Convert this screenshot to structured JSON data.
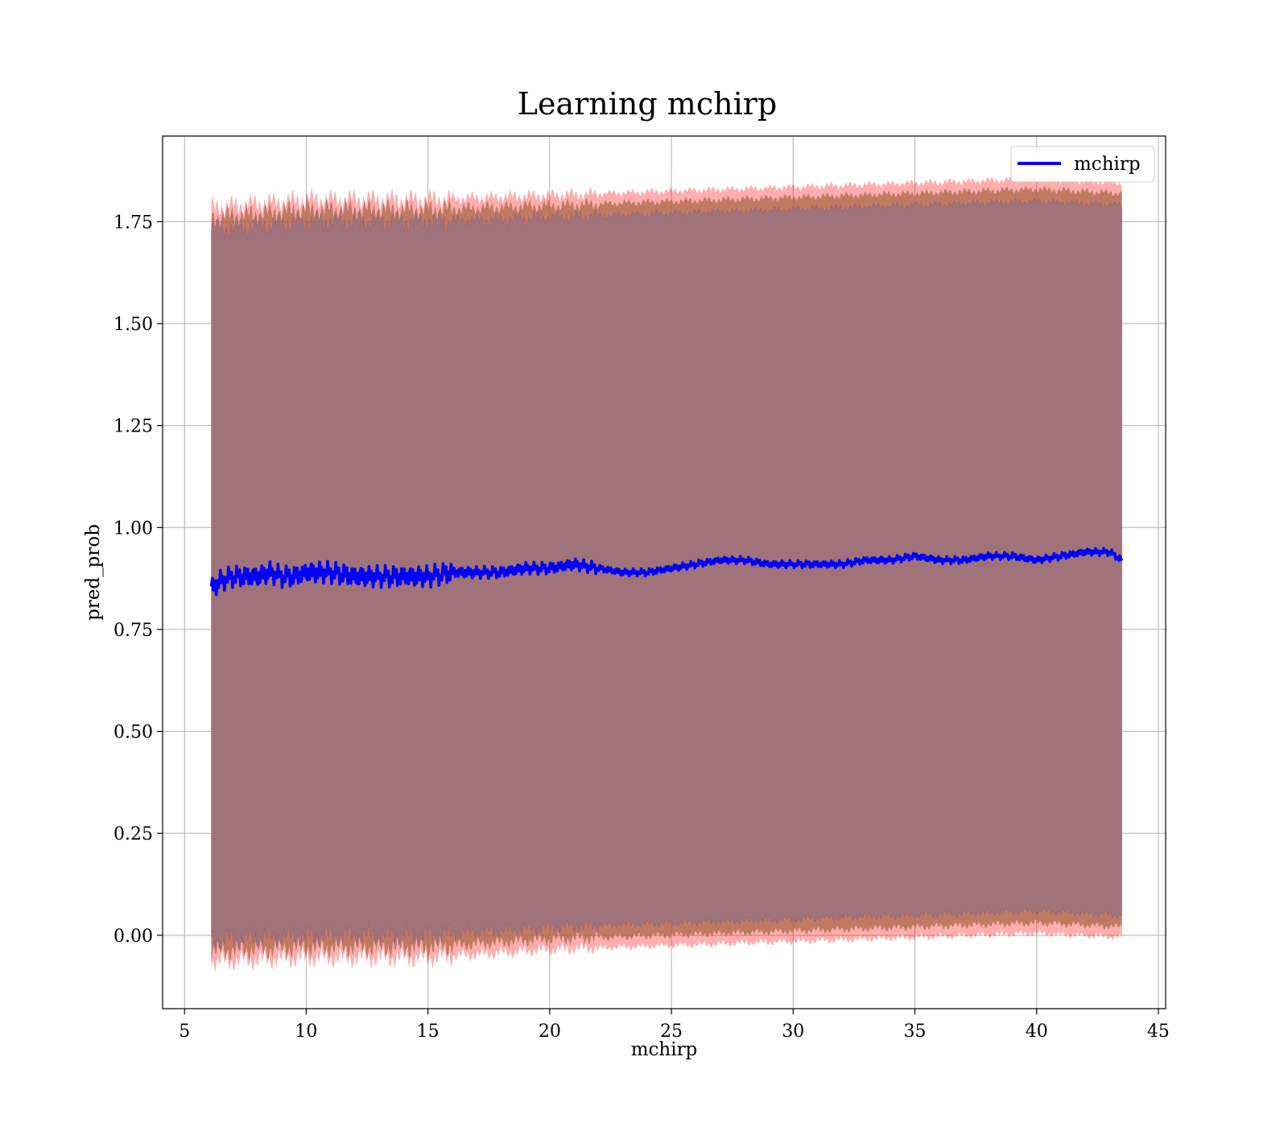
{
  "chart_data": {
    "type": "line",
    "title": "Learning mchirp",
    "xlabel": "mchirp",
    "ylabel": "pred_prob",
    "xlim": [
      4.1,
      45.3
    ],
    "ylim": [
      -0.18,
      1.96
    ],
    "xticks": [
      5,
      10,
      15,
      20,
      25,
      30,
      35,
      40,
      45
    ],
    "yticks": [
      0.0,
      0.25,
      0.5,
      0.75,
      1.0,
      1.25,
      1.5,
      1.75
    ],
    "ytick_labels": [
      "0.00",
      "0.25",
      "0.50",
      "0.75",
      "1.00",
      "1.25",
      "1.50",
      "1.75"
    ],
    "grid": true,
    "legend": {
      "position": "top-right",
      "entries": [
        {
          "label": "mchirp",
          "color": "#0000ff"
        }
      ]
    },
    "series": [
      {
        "name": "mchirp",
        "color": "#0000ff",
        "x": [
          6.1,
          6.5,
          7.0,
          7.5,
          8.0,
          8.5,
          9.0,
          9.5,
          10.0,
          11.0,
          12.0,
          13.0,
          14.0,
          15.0,
          16.0,
          17.0,
          18.0,
          19.0,
          20.0,
          21.0,
          22.0,
          23.0,
          24.0,
          25.0,
          26.0,
          27.0,
          28.0,
          29.0,
          30.0,
          31.0,
          32.0,
          33.0,
          34.0,
          35.0,
          36.0,
          37.0,
          38.0,
          39.0,
          40.0,
          41.0,
          42.0,
          43.0,
          43.5
        ],
        "values": [
          0.85,
          0.87,
          0.88,
          0.88,
          0.88,
          0.89,
          0.88,
          0.88,
          0.89,
          0.89,
          0.88,
          0.88,
          0.88,
          0.88,
          0.89,
          0.89,
          0.89,
          0.9,
          0.9,
          0.91,
          0.9,
          0.89,
          0.89,
          0.9,
          0.91,
          0.92,
          0.92,
          0.91,
          0.91,
          0.91,
          0.91,
          0.92,
          0.92,
          0.93,
          0.92,
          0.92,
          0.93,
          0.93,
          0.92,
          0.93,
          0.94,
          0.94,
          0.92
        ]
      }
    ],
    "band_lower": {
      "color": "#ff0000",
      "x": [
        6.1,
        10.0,
        15.0,
        20.0,
        25.0,
        30.0,
        35.0,
        40.0,
        43.5
      ],
      "values": [
        -0.04,
        -0.03,
        -0.03,
        -0.01,
        0.0,
        0.01,
        0.02,
        0.03,
        0.02
      ]
    },
    "band_upper": {
      "color": "#ff0000",
      "x": [
        6.1,
        10.0,
        15.0,
        20.0,
        25.0,
        30.0,
        35.0,
        40.0,
        43.5
      ],
      "values": [
        1.76,
        1.78,
        1.78,
        1.79,
        1.8,
        1.81,
        1.82,
        1.83,
        1.82
      ]
    }
  }
}
